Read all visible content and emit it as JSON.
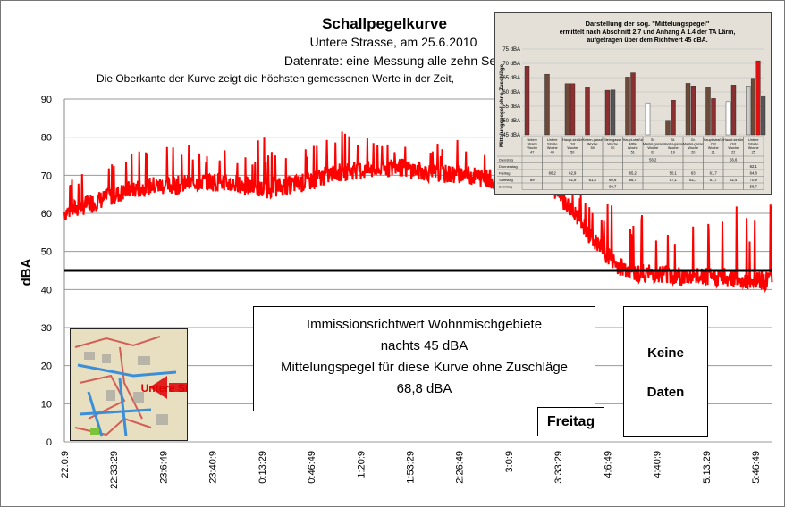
{
  "chart_data": {
    "type": "line",
    "title": "Schallpegelkurve",
    "subtitle1": "Untere Strasse, am 25.6.2010",
    "subtitle2": "Datenrate: eine Messung alle zehn Sek",
    "subtitle3": "Die Oberkante der Kurve zeigt die höchsten gemessenen Werte in der Zeit,",
    "ylabel": "dBA",
    "ylim": [
      0,
      90
    ],
    "yticks": [
      "0",
      "10",
      "20",
      "30",
      "40",
      "50",
      "60",
      "70",
      "80",
      "90"
    ],
    "xticks": [
      "22:0:9",
      "22:33:29",
      "23:6:49",
      "23:40:9",
      "0:13:29",
      "0:46:49",
      "1:20:9",
      "1:53:29",
      "2:26:49",
      "3:0:9",
      "3:33:29",
      "4:6:49",
      "4:40:9",
      "5:13:29",
      "5:46:49"
    ],
    "grid": true,
    "reference_line": {
      "value": 45
    },
    "series": [
      {
        "color": "#ff0000",
        "x_hours": [
          0,
          0.25,
          0.5,
          0.75,
          1.0,
          1.25,
          1.5,
          1.75,
          2.0,
          2.25,
          2.5,
          2.75,
          3.0,
          3.25,
          3.5,
          3.75,
          4.0,
          4.25,
          4.5,
          4.75,
          5.0,
          5.25,
          5.5,
          5.75,
          6.0,
          6.25,
          6.5,
          6.75,
          7.0,
          7.25,
          7.5,
          7.75,
          8.0
        ],
        "values": [
          60,
          62,
          64,
          66,
          67,
          67,
          68,
          68,
          67,
          66,
          67,
          68,
          70,
          71,
          71,
          72,
          71,
          70,
          70,
          69,
          68,
          68,
          67,
          60,
          52,
          46,
          44,
          44,
          43,
          43,
          43,
          42,
          42
        ],
        "peaks": [
          73,
          70,
          74,
          78,
          76,
          80,
          79,
          79,
          77,
          81,
          80,
          79,
          81,
          82,
          80,
          80,
          80,
          79,
          80,
          78,
          85,
          80,
          77,
          69,
          65,
          62,
          60,
          58,
          60,
          57,
          62,
          63,
          64
        ]
      }
    ]
  },
  "annotations": {
    "note_line1": "Immissionsrichtwert Wohnmischgebiete",
    "note_line2": "nachts 45 dBA",
    "note_line3": "Mittelungspegel für diese Kurve ohne Zuschläge",
    "note_line4": "68,8 dBA",
    "freitag": "Freitag",
    "keine_line1": "Keine",
    "keine_line2": "Daten",
    "map_label": "Untere Straße"
  },
  "inset": {
    "title1": "Darstellung der sog. \"Mittelungspegel\"",
    "title2": "ermittelt nach Abschnitt 2.7 und Anhang A 1.4 der TA Lärm,",
    "title3": "aufgetragen über dem Richtwert 45 dBA.",
    "ylabel": "Mittelungspegel ohne Zuschläge",
    "yticks": [
      "45 dBA",
      "50 dBA",
      "55 dBA",
      "60 dBA",
      "65 dBA",
      "70 dBA",
      "75 dBA"
    ],
    "columns": [
      "Untere Straße Woche 47",
      "Untere Straße Woche 49",
      "Haupt-straße Ost Woche 50",
      "Ketten-gasse Woche 50",
      "Stein-gasse Woche 50",
      "Haupt-straße Mitte Woche 51",
      "St. Mantel-gasse Woche 02",
      "St. Mantel-gasse Woche 19",
      "Gr. Mantel-gasse Woche 20",
      "Haupt-straße Ost Woche 21",
      "Haupt-straße Ost Woche 22",
      "Untere Straße Woche 25"
    ],
    "rows": [
      {
        "name": "Dienstag",
        "values": [
          "",
          "",
          "",
          "",
          "",
          "",
          "56,2",
          "",
          "",
          "",
          "56,6",
          ""
        ]
      },
      {
        "name": "Donnerstag",
        "values": [
          "",
          "",
          "",
          "",
          "",
          "",
          "",
          "",
          "",
          "",
          "",
          "62,1"
        ]
      },
      {
        "name": "Freitag",
        "values": [
          "",
          "66,2",
          "62,9",
          "",
          "",
          "65,2",
          "",
          "50,1",
          "63",
          "61,7",
          "",
          "64,8"
        ]
      },
      {
        "name": "Samstag",
        "values": [
          "69",
          "",
          "62,9",
          "61,8",
          "60,6",
          "66,7",
          "",
          "57,1",
          "62,1",
          "57,7",
          "62,4",
          "70,9"
        ]
      },
      {
        "name": "Sonntag",
        "values": [
          "",
          "",
          "",
          "",
          "60,7",
          "",
          "",
          "",
          "",
          "",
          "",
          "58,7"
        ]
      }
    ]
  }
}
